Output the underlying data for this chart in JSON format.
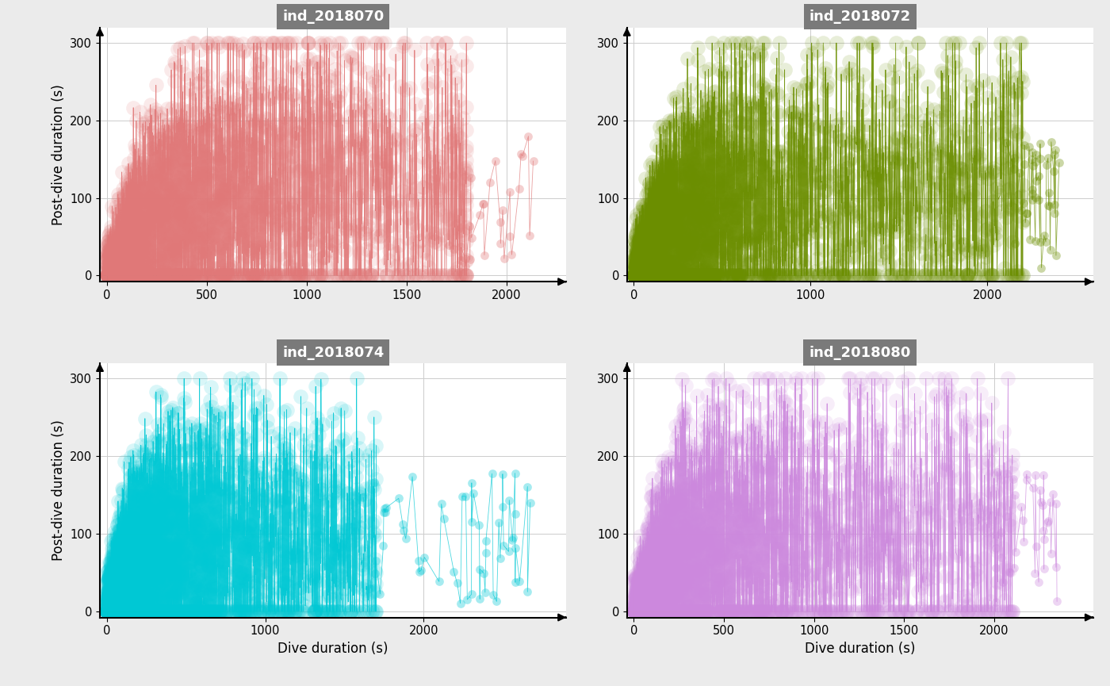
{
  "panels": [
    {
      "title": "ind_2018070",
      "color": "#E07878",
      "xlim_max": 2300,
      "xticks": [
        0,
        500,
        1000,
        1500,
        2000
      ],
      "seed": 10,
      "n_points": 3000,
      "x_scale": 400,
      "y_mean_asymptote": 120,
      "y_rise_scale": 300,
      "outlier_x_start": 1800,
      "n_outlier": 8
    },
    {
      "title": "ind_2018072",
      "color": "#6B8E00",
      "xlim_max": 2600,
      "xticks": [
        0,
        1000,
        2000
      ],
      "seed": 20,
      "n_points": 3500,
      "x_scale": 300,
      "y_mean_asymptote": 100,
      "y_rise_scale": 250,
      "outlier_x_start": 2200,
      "n_outlier": 12
    },
    {
      "title": "ind_2018074",
      "color": "#00C8D4",
      "xlim_max": 2900,
      "xticks": [
        0,
        1000,
        2000
      ],
      "seed": 30,
      "n_points": 4000,
      "x_scale": 250,
      "y_mean_asymptote": 90,
      "y_rise_scale": 200,
      "outlier_x_start": 1700,
      "n_outlier": 15
    },
    {
      "title": "ind_2018080",
      "color": "#CC88DD",
      "xlim_max": 2550,
      "xticks": [
        0,
        500,
        1000,
        1500,
        2000
      ],
      "seed": 40,
      "n_points": 3000,
      "x_scale": 350,
      "y_mean_asymptote": 100,
      "y_rise_scale": 220,
      "outlier_x_start": 2100,
      "n_outlier": 10
    }
  ],
  "ylim": [
    0,
    320
  ],
  "yticks": [
    0,
    100,
    200,
    300
  ],
  "ylabel": "Post-dive duration (s)",
  "xlabel": "Dive duration (s)",
  "title_bg_color": "#7A7A7A",
  "title_text_color": "white",
  "bg_color": "white",
  "grid_color": "#CCCCCC",
  "fig_bg_color": "#EBEBEB"
}
